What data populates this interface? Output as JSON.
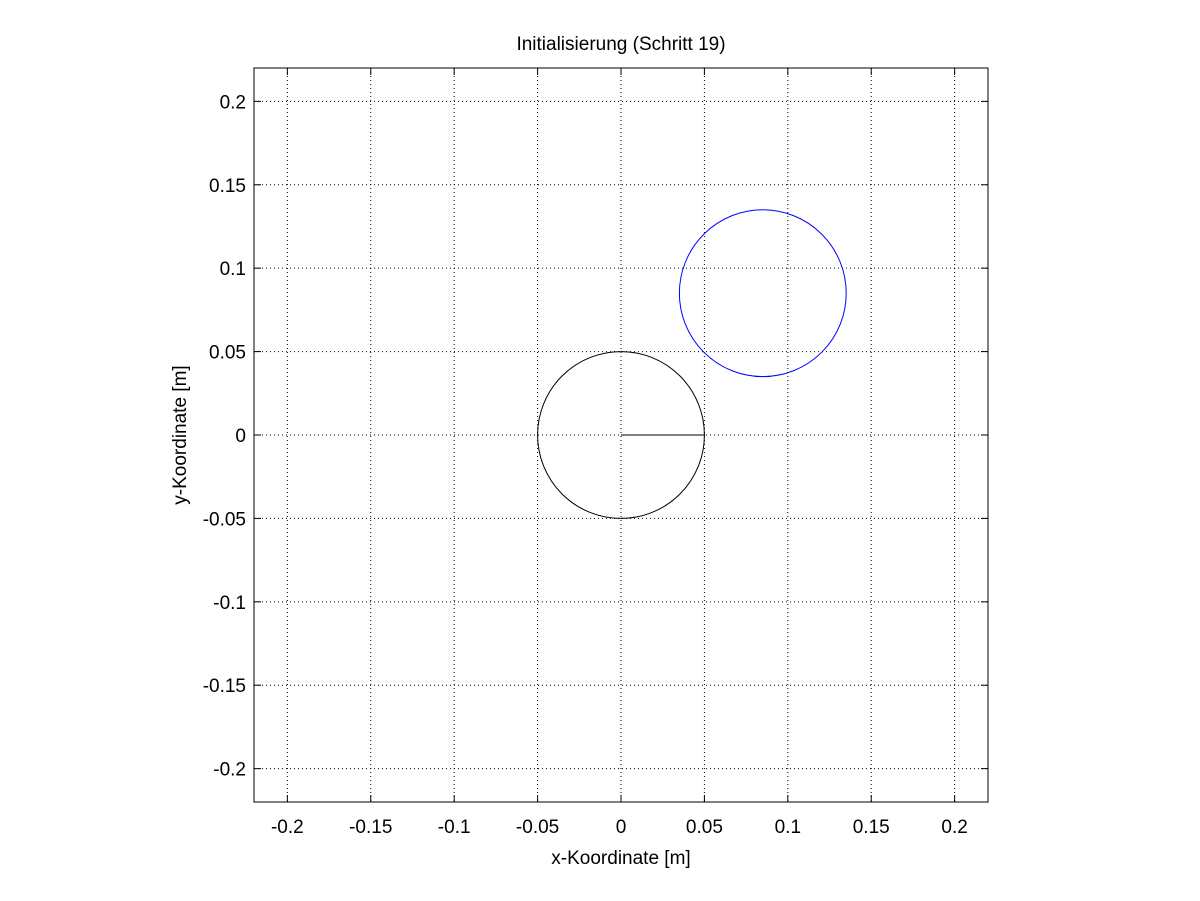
{
  "chart_data": {
    "type": "line",
    "title": "Initialisierung (Schritt 19)",
    "xlabel": "x-Koordinate [m]",
    "ylabel": "y-Koordinate [m]",
    "xlim": [
      -0.22,
      0.22
    ],
    "ylim": [
      -0.22,
      0.22
    ],
    "grid": true,
    "xticks": [
      -0.2,
      -0.15,
      -0.1,
      -0.05,
      0,
      0.05,
      0.1,
      0.15,
      0.2
    ],
    "xtick_labels": [
      "-0.2",
      "-0.15",
      "-0.1",
      "-0.05",
      "0",
      "0.05",
      "0.1",
      "0.15",
      "0.2"
    ],
    "yticks": [
      -0.2,
      -0.15,
      -0.1,
      -0.05,
      0,
      0.05,
      0.1,
      0.15,
      0.2
    ],
    "ytick_labels": [
      "-0.2",
      "-0.15",
      "-0.1",
      "-0.05",
      "0",
      "0.05",
      "0.1",
      "0.15",
      "0.2"
    ],
    "circles": [
      {
        "cx": 0,
        "cy": 0,
        "r": 0.05,
        "color": "#000000"
      },
      {
        "cx": 0.085,
        "cy": 0.085,
        "r": 0.05,
        "color": "#0000ff"
      }
    ],
    "segments": [
      {
        "x": [
          0,
          0.05
        ],
        "y": [
          0,
          0
        ],
        "color": "#000000"
      }
    ]
  }
}
